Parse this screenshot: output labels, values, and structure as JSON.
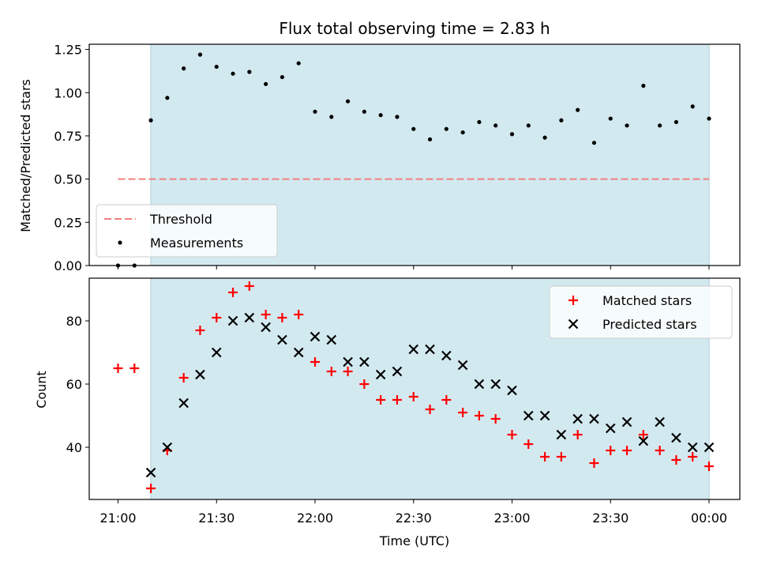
{
  "chart_data": [
    {
      "panel": "top",
      "type": "scatter",
      "title": "Flux total observing time = 2.83 h",
      "ylabel": "Matched/Predicted stars",
      "xlabel": "",
      "ylim": [
        0,
        1.28
      ],
      "yticks": [
        "0.00",
        "0.25",
        "0.50",
        "0.75",
        "1.00",
        "1.25"
      ],
      "ytick_values": [
        0,
        0.25,
        0.5,
        0.75,
        1.0,
        1.25
      ],
      "observing_window": [
        "21:10",
        "00:00"
      ],
      "threshold": {
        "name": "Threshold",
        "value": 0.5,
        "color": "#f08080",
        "start": "21:00",
        "end": "00:00"
      },
      "legend": {
        "placement": "lower-left",
        "entries": [
          "Threshold",
          "Measurements"
        ]
      },
      "series": [
        {
          "name": "Measurements",
          "color": "#000000",
          "points": [
            [
              "21:00",
              0.0
            ],
            [
              "21:05",
              0.0
            ],
            [
              "21:10",
              0.84
            ],
            [
              "21:15",
              0.97
            ],
            [
              "21:20",
              1.14
            ],
            [
              "21:25",
              1.22
            ],
            [
              "21:30",
              1.15
            ],
            [
              "21:35",
              1.11
            ],
            [
              "21:40",
              1.12
            ],
            [
              "21:45",
              1.05
            ],
            [
              "21:50",
              1.09
            ],
            [
              "21:55",
              1.17
            ],
            [
              "22:00",
              0.89
            ],
            [
              "22:05",
              0.86
            ],
            [
              "22:10",
              0.95
            ],
            [
              "22:15",
              0.89
            ],
            [
              "22:20",
              0.87
            ],
            [
              "22:25",
              0.86
            ],
            [
              "22:30",
              0.79
            ],
            [
              "22:35",
              0.73
            ],
            [
              "22:40",
              0.79
            ],
            [
              "22:45",
              0.77
            ],
            [
              "22:50",
              0.83
            ],
            [
              "22:55",
              0.81
            ],
            [
              "23:00",
              0.76
            ],
            [
              "23:05",
              0.81
            ],
            [
              "23:10",
              0.74
            ],
            [
              "23:15",
              0.84
            ],
            [
              "23:20",
              0.9
            ],
            [
              "23:25",
              0.71
            ],
            [
              "23:30",
              0.85
            ],
            [
              "23:35",
              0.81
            ],
            [
              "23:40",
              1.04
            ],
            [
              "23:45",
              0.81
            ],
            [
              "23:50",
              0.83
            ],
            [
              "23:55",
              0.92
            ],
            [
              "00:00",
              0.85
            ]
          ]
        }
      ]
    },
    {
      "panel": "bottom",
      "type": "scatter",
      "title": "",
      "ylabel": "Count",
      "xlabel": "Time (UTC)",
      "ylim": [
        23.5,
        93.5
      ],
      "yticks": [
        "40",
        "60",
        "80"
      ],
      "ytick_values": [
        40,
        60,
        80
      ],
      "xticks": [
        "21:00",
        "21:30",
        "22:00",
        "22:30",
        "23:00",
        "23:30",
        "00:00"
      ],
      "observing_window": [
        "21:10",
        "00:00"
      ],
      "legend": {
        "placement": "top-right",
        "entries": [
          "Matched stars",
          "Predicted stars"
        ]
      },
      "series": [
        {
          "name": "Matched stars",
          "marker": "plus",
          "color": "#ff0000",
          "points": [
            [
              "21:00",
              65
            ],
            [
              "21:05",
              65
            ],
            [
              "21:10",
              27
            ],
            [
              "21:15",
              39
            ],
            [
              "21:20",
              62
            ],
            [
              "21:25",
              77
            ],
            [
              "21:30",
              81
            ],
            [
              "21:35",
              89
            ],
            [
              "21:40",
              91
            ],
            [
              "21:45",
              82
            ],
            [
              "21:50",
              81
            ],
            [
              "21:55",
              82
            ],
            [
              "22:00",
              67
            ],
            [
              "22:05",
              64
            ],
            [
              "22:10",
              64
            ],
            [
              "22:15",
              60
            ],
            [
              "22:20",
              55
            ],
            [
              "22:25",
              55
            ],
            [
              "22:30",
              56
            ],
            [
              "22:35",
              52
            ],
            [
              "22:40",
              55
            ],
            [
              "22:45",
              51
            ],
            [
              "22:50",
              50
            ],
            [
              "22:55",
              49
            ],
            [
              "23:00",
              44
            ],
            [
              "23:05",
              41
            ],
            [
              "23:10",
              37
            ],
            [
              "23:15",
              37
            ],
            [
              "23:20",
              44
            ],
            [
              "23:25",
              35
            ],
            [
              "23:30",
              39
            ],
            [
              "23:35",
              39
            ],
            [
              "23:40",
              44
            ],
            [
              "23:45",
              39
            ],
            [
              "23:50",
              36
            ],
            [
              "23:55",
              37
            ],
            [
              "00:00",
              34
            ]
          ]
        },
        {
          "name": "Predicted stars",
          "marker": "x",
          "color": "#000000",
          "points": [
            [
              "21:10",
              32
            ],
            [
              "21:15",
              40
            ],
            [
              "21:20",
              54
            ],
            [
              "21:25",
              63
            ],
            [
              "21:30",
              70
            ],
            [
              "21:35",
              80
            ],
            [
              "21:40",
              81
            ],
            [
              "21:45",
              78
            ],
            [
              "21:50",
              74
            ],
            [
              "21:55",
              70
            ],
            [
              "22:00",
              75
            ],
            [
              "22:05",
              74
            ],
            [
              "22:10",
              67
            ],
            [
              "22:15",
              67
            ],
            [
              "22:20",
              63
            ],
            [
              "22:25",
              64
            ],
            [
              "22:30",
              71
            ],
            [
              "22:35",
              71
            ],
            [
              "22:40",
              69
            ],
            [
              "22:45",
              66
            ],
            [
              "22:50",
              60
            ],
            [
              "22:55",
              60
            ],
            [
              "23:00",
              58
            ],
            [
              "23:05",
              50
            ],
            [
              "23:10",
              50
            ],
            [
              "23:15",
              44
            ],
            [
              "23:20",
              49
            ],
            [
              "23:25",
              49
            ],
            [
              "23:30",
              46
            ],
            [
              "23:35",
              48
            ],
            [
              "23:40",
              42
            ],
            [
              "23:45",
              48
            ],
            [
              "23:50",
              43
            ],
            [
              "23:55",
              40
            ],
            [
              "00:00",
              40
            ]
          ]
        }
      ]
    }
  ],
  "colors": {
    "observing_window": "#d3e9f0"
  }
}
